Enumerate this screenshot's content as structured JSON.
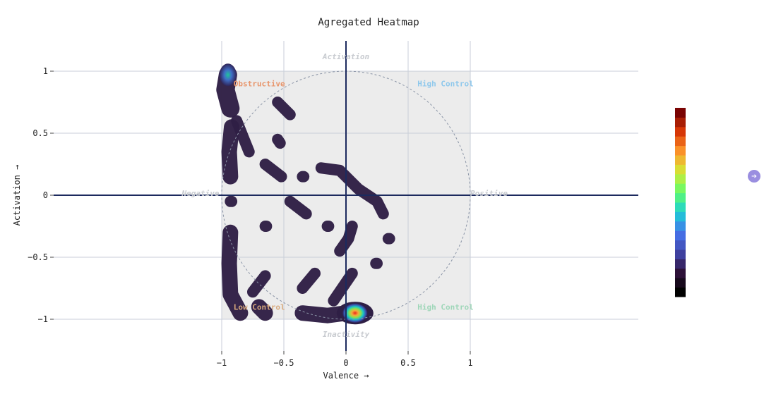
{
  "chart_data": {
    "type": "heatmap",
    "title": "Agregated Heatmap",
    "xlabel": "Valence →",
    "ylabel": "Activation →",
    "xlim": [
      -1.5,
      1.5
    ],
    "ylim": [
      -1.25,
      1.25
    ],
    "xticks": [
      {
        "value": -1,
        "label": "−1"
      },
      {
        "value": -0.5,
        "label": "−0.5"
      },
      {
        "value": 0,
        "label": "0"
      },
      {
        "value": 0.5,
        "label": "0.5"
      },
      {
        "value": 1,
        "label": "1"
      }
    ],
    "yticks": [
      {
        "value": 1,
        "label": "1"
      },
      {
        "value": 0.5,
        "label": "0.5"
      },
      {
        "value": 0,
        "label": "0"
      },
      {
        "value": -0.5,
        "label": "−0.5"
      },
      {
        "value": -1,
        "label": "−1"
      }
    ],
    "grid": true,
    "reference_circle_radius": 1,
    "direction_labels": {
      "top": "Activation",
      "bottom": "Inactivity",
      "left": "Negative",
      "right": "Positive"
    },
    "quadrant_labels": [
      {
        "text": "Obstructive",
        "x": -0.95,
        "y": 0.9,
        "color": "#e8956b"
      },
      {
        "text": "High Control",
        "x": 0.53,
        "y": 0.9,
        "color": "#8ec8ec"
      },
      {
        "text": "Low Control",
        "x": -0.95,
        "y": -0.9,
        "color": "#d8a97c"
      },
      {
        "text": "High Control",
        "x": 0.53,
        "y": -0.9,
        "color": "#9ed6b8"
      }
    ],
    "density_blobs": [
      {
        "points": [
          [
            -0.95,
            0.97
          ],
          [
            -0.97,
            0.85
          ],
          [
            -0.93,
            0.7
          ]
        ],
        "level": 0.35
      },
      {
        "points": [
          [
            -0.92,
            0.55
          ],
          [
            -0.94,
            0.35
          ],
          [
            -0.93,
            0.15
          ]
        ],
        "level": 0.12
      },
      {
        "points": [
          [
            -0.88,
            0.6
          ],
          [
            -0.82,
            0.45
          ],
          [
            -0.78,
            0.35
          ]
        ],
        "level": 0.1
      },
      {
        "points": [
          [
            -0.55,
            0.75
          ],
          [
            -0.45,
            0.65
          ]
        ],
        "level": 0.06
      },
      {
        "points": [
          [
            -0.55,
            0.45
          ],
          [
            -0.53,
            0.42
          ]
        ],
        "level": 0.08
      },
      {
        "points": [
          [
            -0.65,
            0.25
          ],
          [
            -0.52,
            0.15
          ]
        ],
        "level": 0.06
      },
      {
        "points": [
          [
            -0.35,
            0.15
          ],
          [
            -0.34,
            0.15
          ]
        ],
        "level": 0.06
      },
      {
        "points": [
          [
            -0.2,
            0.22
          ],
          [
            -0.05,
            0.2
          ],
          [
            0.1,
            0.05
          ],
          [
            0.25,
            -0.05
          ],
          [
            0.3,
            -0.15
          ]
        ],
        "level": 0.08
      },
      {
        "points": [
          [
            -0.93,
            -0.05
          ],
          [
            -0.92,
            -0.05
          ]
        ],
        "level": 0.08
      },
      {
        "points": [
          [
            -0.45,
            -0.05
          ],
          [
            -0.32,
            -0.15
          ]
        ],
        "level": 0.06
      },
      {
        "points": [
          [
            -0.65,
            -0.25
          ],
          [
            -0.64,
            -0.25
          ]
        ],
        "level": 0.06
      },
      {
        "points": [
          [
            -0.15,
            -0.25
          ],
          [
            -0.14,
            -0.25
          ]
        ],
        "level": 0.06
      },
      {
        "points": [
          [
            0.05,
            -0.25
          ],
          [
            0.02,
            -0.35
          ],
          [
            -0.05,
            -0.45
          ]
        ],
        "level": 0.06
      },
      {
        "points": [
          [
            0.35,
            -0.35
          ],
          [
            0.34,
            -0.35
          ]
        ],
        "level": 0.06
      },
      {
        "points": [
          [
            0.25,
            -0.55
          ],
          [
            0.24,
            -0.55
          ]
        ],
        "level": 0.06
      },
      {
        "points": [
          [
            -0.93,
            -0.3
          ],
          [
            -0.94,
            -0.55
          ],
          [
            -0.93,
            -0.8
          ],
          [
            -0.85,
            -0.95
          ]
        ],
        "level": 0.12
      },
      {
        "points": [
          [
            -0.65,
            -0.95
          ],
          [
            -0.7,
            -0.9
          ]
        ],
        "level": 0.15
      },
      {
        "points": [
          [
            -0.65,
            -0.65
          ],
          [
            -0.75,
            -0.78
          ]
        ],
        "level": 0.06
      },
      {
        "points": [
          [
            -0.25,
            -0.63
          ],
          [
            -0.35,
            -0.75
          ]
        ],
        "level": 0.06
      },
      {
        "points": [
          [
            0.05,
            -0.63
          ],
          [
            -0.1,
            -0.85
          ]
        ],
        "level": 0.08
      },
      {
        "points": [
          [
            -0.35,
            -0.95
          ],
          [
            -0.15,
            -0.97
          ],
          [
            0.0,
            -0.95
          ]
        ],
        "level": 0.12
      },
      {
        "points": [
          [
            0.05,
            -0.95
          ],
          [
            0.1,
            -0.95
          ]
        ],
        "level": 1.0
      }
    ],
    "colorscale": [
      "#000000",
      "#30123b",
      "#4145ab",
      "#4675ed",
      "#1bcfd4",
      "#61fc6c",
      "#d2e935",
      "#fe9b2d",
      "#db3a07",
      "#7a0403"
    ]
  },
  "controls": {
    "next_icon": "arrow-right-circle-icon",
    "next_glyph": "➔"
  }
}
